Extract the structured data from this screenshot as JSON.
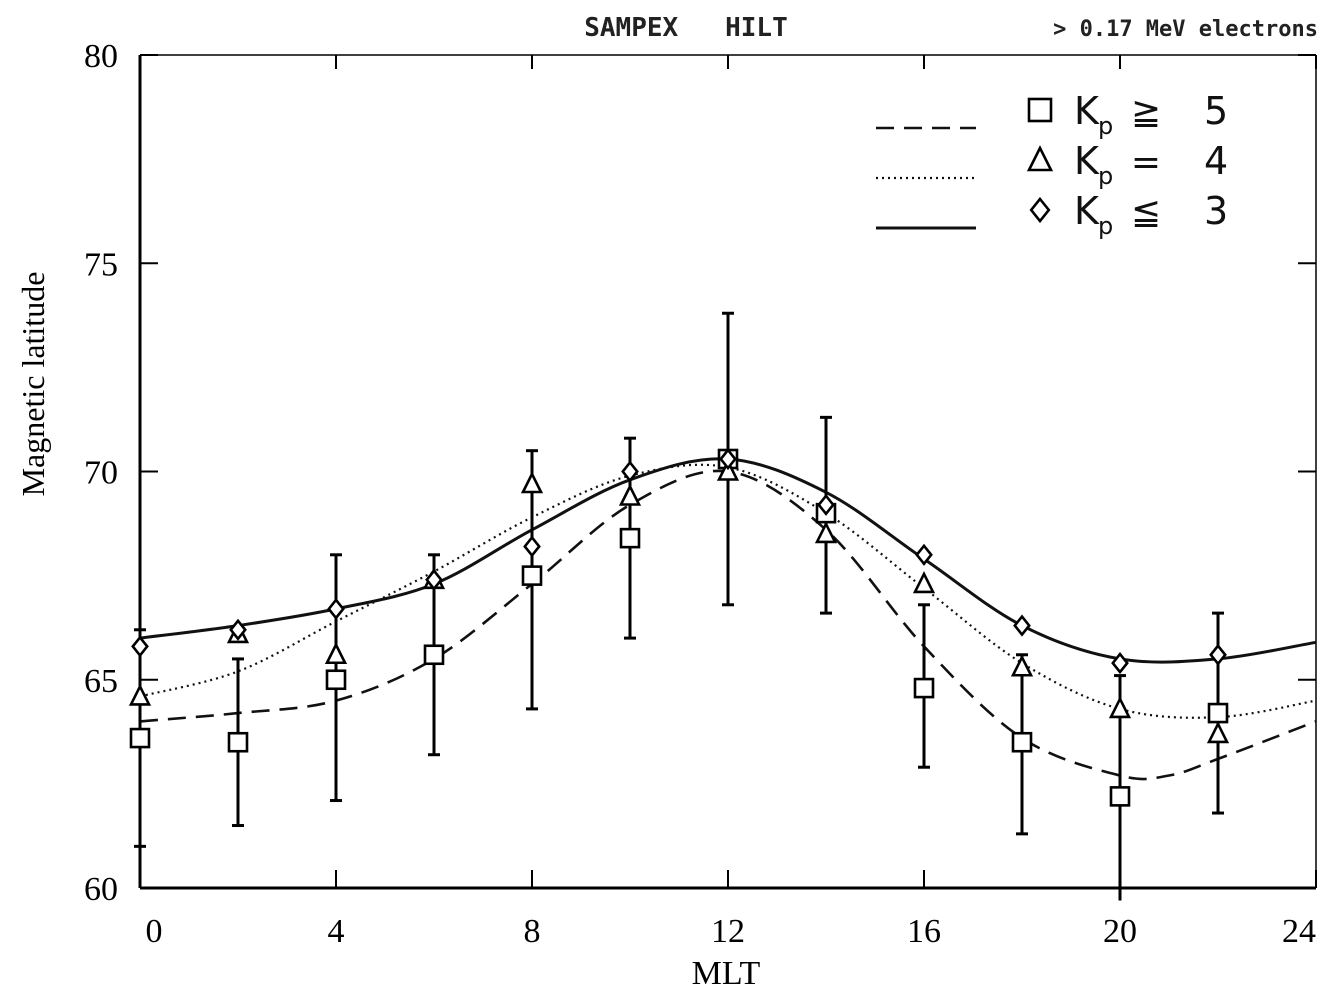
{
  "chart_data": {
    "type": "scatter",
    "title": "SAMPEX   HILT",
    "subtitle": "> 0.17 MeV electrons",
    "xlabel": "MLT",
    "ylabel": "Magnetic latitude",
    "xlim": [
      0,
      24
    ],
    "ylim": [
      60,
      80
    ],
    "x_ticks": [
      0,
      4,
      8,
      12,
      16,
      20,
      24
    ],
    "y_ticks": [
      60,
      65,
      70,
      75,
      80
    ],
    "x_tick_labels": [
      "0",
      "4",
      "8",
      "12",
      "16",
      "20",
      "24"
    ],
    "y_tick_labels": [
      "60",
      "65",
      "70",
      "75",
      "80"
    ],
    "grid": false,
    "legend_position": "top-right",
    "series": [
      {
        "key": "kp5",
        "marker": "square",
        "line_style": "dashed",
        "legend": {
          "prefix": "K",
          "sub": "p",
          "rel": "≧",
          "val": "5"
        },
        "points": [
          {
            "x": 0,
            "y": 63.6,
            "err_low": 61.0,
            "err_high": 66.2
          },
          {
            "x": 2,
            "y": 63.5,
            "err_low": 61.5,
            "err_high": 65.5
          },
          {
            "x": 4,
            "y": 65.0,
            "err_low": 62.1,
            "err_high": 68.0
          },
          {
            "x": 6,
            "y": 65.6,
            "err_low": 63.2,
            "err_high": 68.0
          },
          {
            "x": 8,
            "y": 67.5,
            "err_low": 64.3,
            "err_high": 70.5
          },
          {
            "x": 10,
            "y": 68.4,
            "err_low": 66.0,
            "err_high": 70.8
          },
          {
            "x": 12,
            "y": 70.3,
            "err_low": 66.8,
            "err_high": 73.8
          },
          {
            "x": 14,
            "y": 69.0,
            "err_low": 66.6,
            "err_high": 71.3
          },
          {
            "x": 16,
            "y": 64.8,
            "err_low": 62.9,
            "err_high": 66.8
          },
          {
            "x": 18,
            "y": 63.5,
            "err_low": 61.3,
            "err_high": 65.6
          },
          {
            "x": 20,
            "y": 62.2,
            "err_low": 59.6,
            "err_high": 65.1
          },
          {
            "x": 22,
            "y": 64.2,
            "err_low": 61.8,
            "err_high": 66.6
          }
        ],
        "fit": [
          [
            0,
            64.0
          ],
          [
            2,
            64.2
          ],
          [
            4,
            64.5
          ],
          [
            6,
            65.5
          ],
          [
            8,
            67.3
          ],
          [
            10,
            69.2
          ],
          [
            12,
            70.0
          ],
          [
            14,
            68.6
          ],
          [
            16,
            65.8
          ],
          [
            18,
            63.6
          ],
          [
            20,
            62.7
          ],
          [
            21,
            62.7
          ],
          [
            22,
            63.1
          ],
          [
            24,
            64.0
          ]
        ]
      },
      {
        "key": "kp4",
        "marker": "triangle",
        "line_style": "dotted",
        "legend": {
          "prefix": "K",
          "sub": "p",
          "rel": "=",
          "val": "4"
        },
        "points": [
          {
            "x": 0,
            "y": 64.6
          },
          {
            "x": 2,
            "y": 66.1
          },
          {
            "x": 4,
            "y": 65.6
          },
          {
            "x": 6,
            "y": 67.4
          },
          {
            "x": 8,
            "y": 69.7
          },
          {
            "x": 10,
            "y": 69.4
          },
          {
            "x": 12,
            "y": 70.0
          },
          {
            "x": 14,
            "y": 68.5
          },
          {
            "x": 16,
            "y": 67.3
          },
          {
            "x": 18,
            "y": 65.3
          },
          {
            "x": 20,
            "y": 64.3
          },
          {
            "x": 22,
            "y": 63.7
          }
        ],
        "fit": [
          [
            0,
            64.6
          ],
          [
            2,
            65.2
          ],
          [
            4,
            66.4
          ],
          [
            6,
            67.6
          ],
          [
            8,
            68.9
          ],
          [
            10,
            69.9
          ],
          [
            12,
            70.1
          ],
          [
            14,
            69.0
          ],
          [
            16,
            67.2
          ],
          [
            18,
            65.4
          ],
          [
            20,
            64.3
          ],
          [
            22,
            64.1
          ],
          [
            24,
            64.5
          ]
        ]
      },
      {
        "key": "kp3",
        "marker": "diamond",
        "line_style": "solid",
        "legend": {
          "prefix": "K",
          "sub": "p",
          "rel": "≦",
          "val": "3"
        },
        "points": [
          {
            "x": 0,
            "y": 65.8
          },
          {
            "x": 2,
            "y": 66.2
          },
          {
            "x": 4,
            "y": 66.7
          },
          {
            "x": 6,
            "y": 67.4
          },
          {
            "x": 8,
            "y": 68.2
          },
          {
            "x": 10,
            "y": 70.0
          },
          {
            "x": 12,
            "y": 70.3
          },
          {
            "x": 14,
            "y": 69.2
          },
          {
            "x": 16,
            "y": 68.0
          },
          {
            "x": 18,
            "y": 66.3
          },
          {
            "x": 20,
            "y": 65.4
          },
          {
            "x": 22,
            "y": 65.6
          }
        ],
        "fit": [
          [
            0,
            66.0
          ],
          [
            2,
            66.3
          ],
          [
            4,
            66.7
          ],
          [
            6,
            67.3
          ],
          [
            8,
            68.6
          ],
          [
            10,
            69.8
          ],
          [
            12,
            70.3
          ],
          [
            14,
            69.5
          ],
          [
            16,
            67.9
          ],
          [
            18,
            66.3
          ],
          [
            20,
            65.5
          ],
          [
            22,
            65.5
          ],
          [
            24,
            65.9
          ]
        ]
      }
    ]
  }
}
